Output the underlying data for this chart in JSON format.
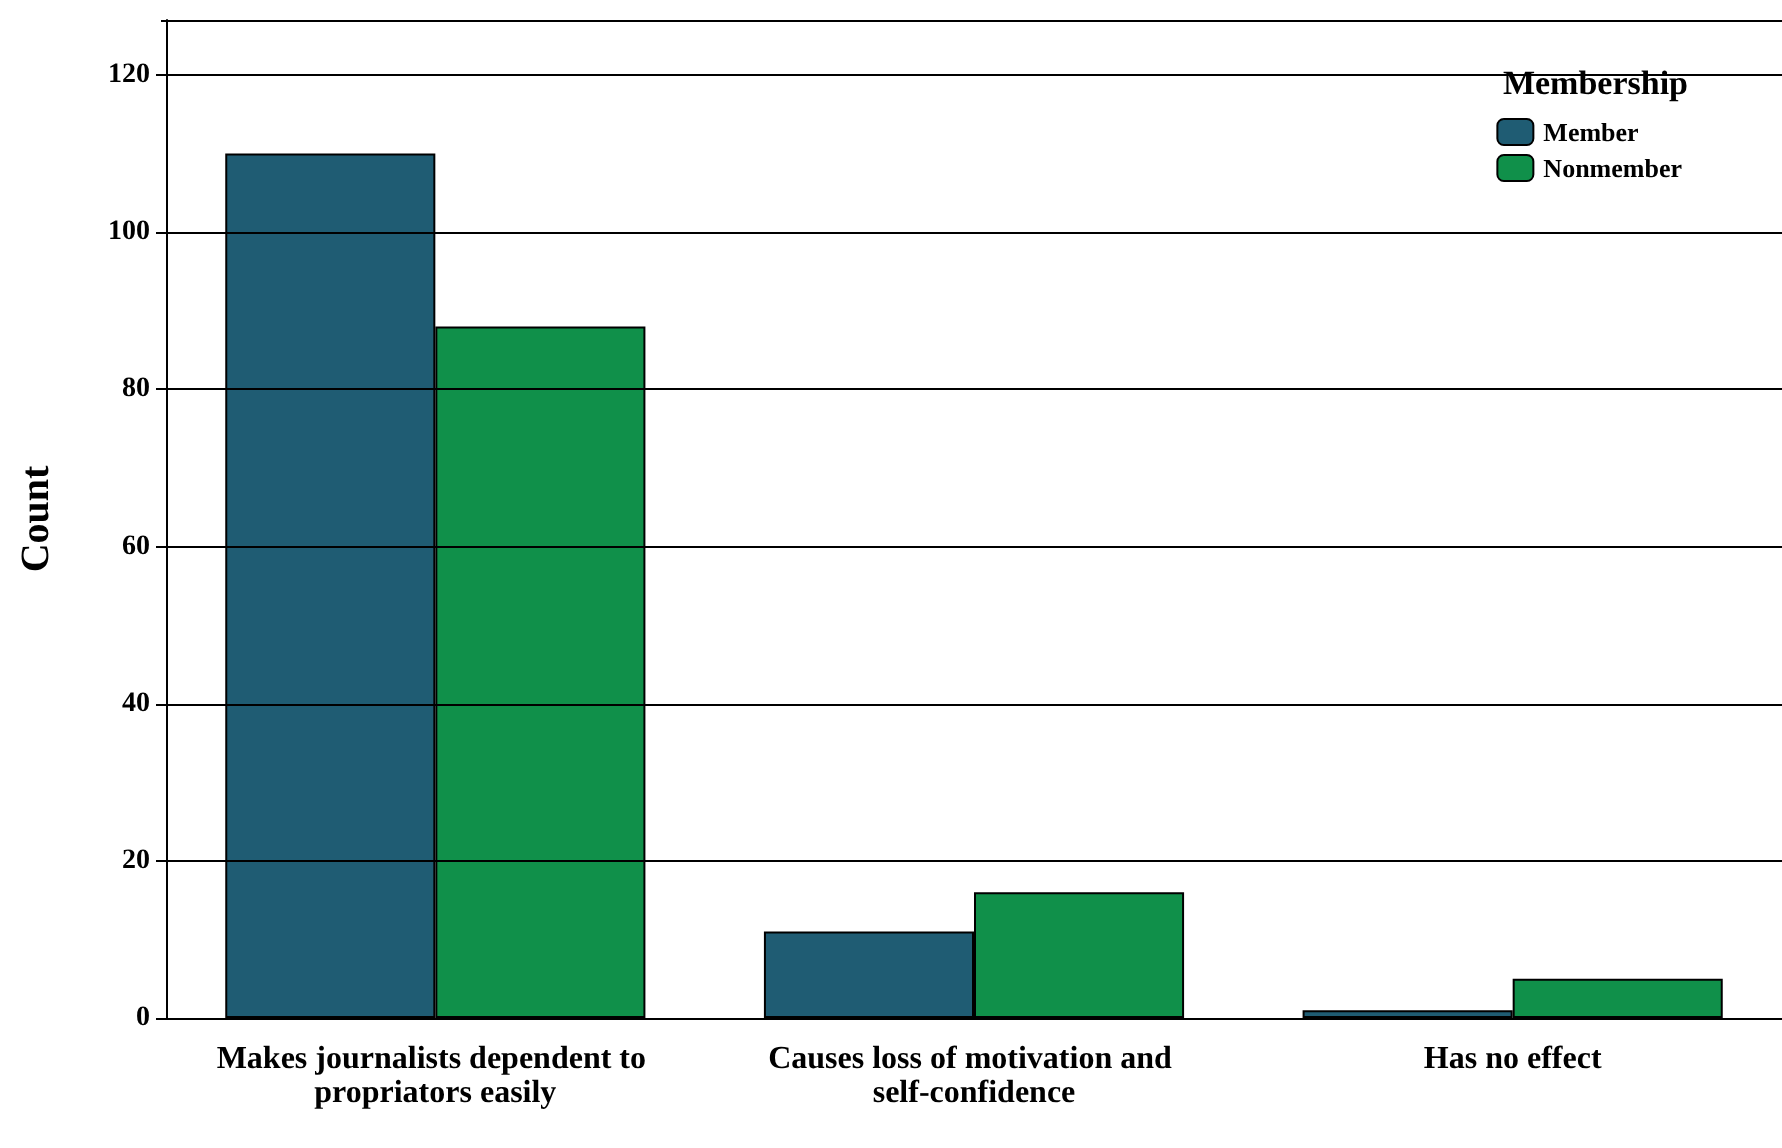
{
  "chart_data": {
    "type": "bar",
    "ylabel": "Count",
    "legend_title": "Membership",
    "categories": [
      "Makes journalists dependent to propriators easily",
      "Causes loss of motivation and self-confidence",
      "Has no effect"
    ],
    "series": [
      {
        "name": "Member",
        "color": "#1f5c73",
        "values": [
          110,
          11,
          1
        ]
      },
      {
        "name": "Nonmember",
        "color": "#10904a",
        "values": [
          88,
          16,
          5
        ]
      }
    ],
    "ylim": [
      0,
      127
    ],
    "yticks": [
      0,
      20,
      40,
      60,
      80,
      100,
      120
    ],
    "grid": "y",
    "legend": "top right"
  }
}
